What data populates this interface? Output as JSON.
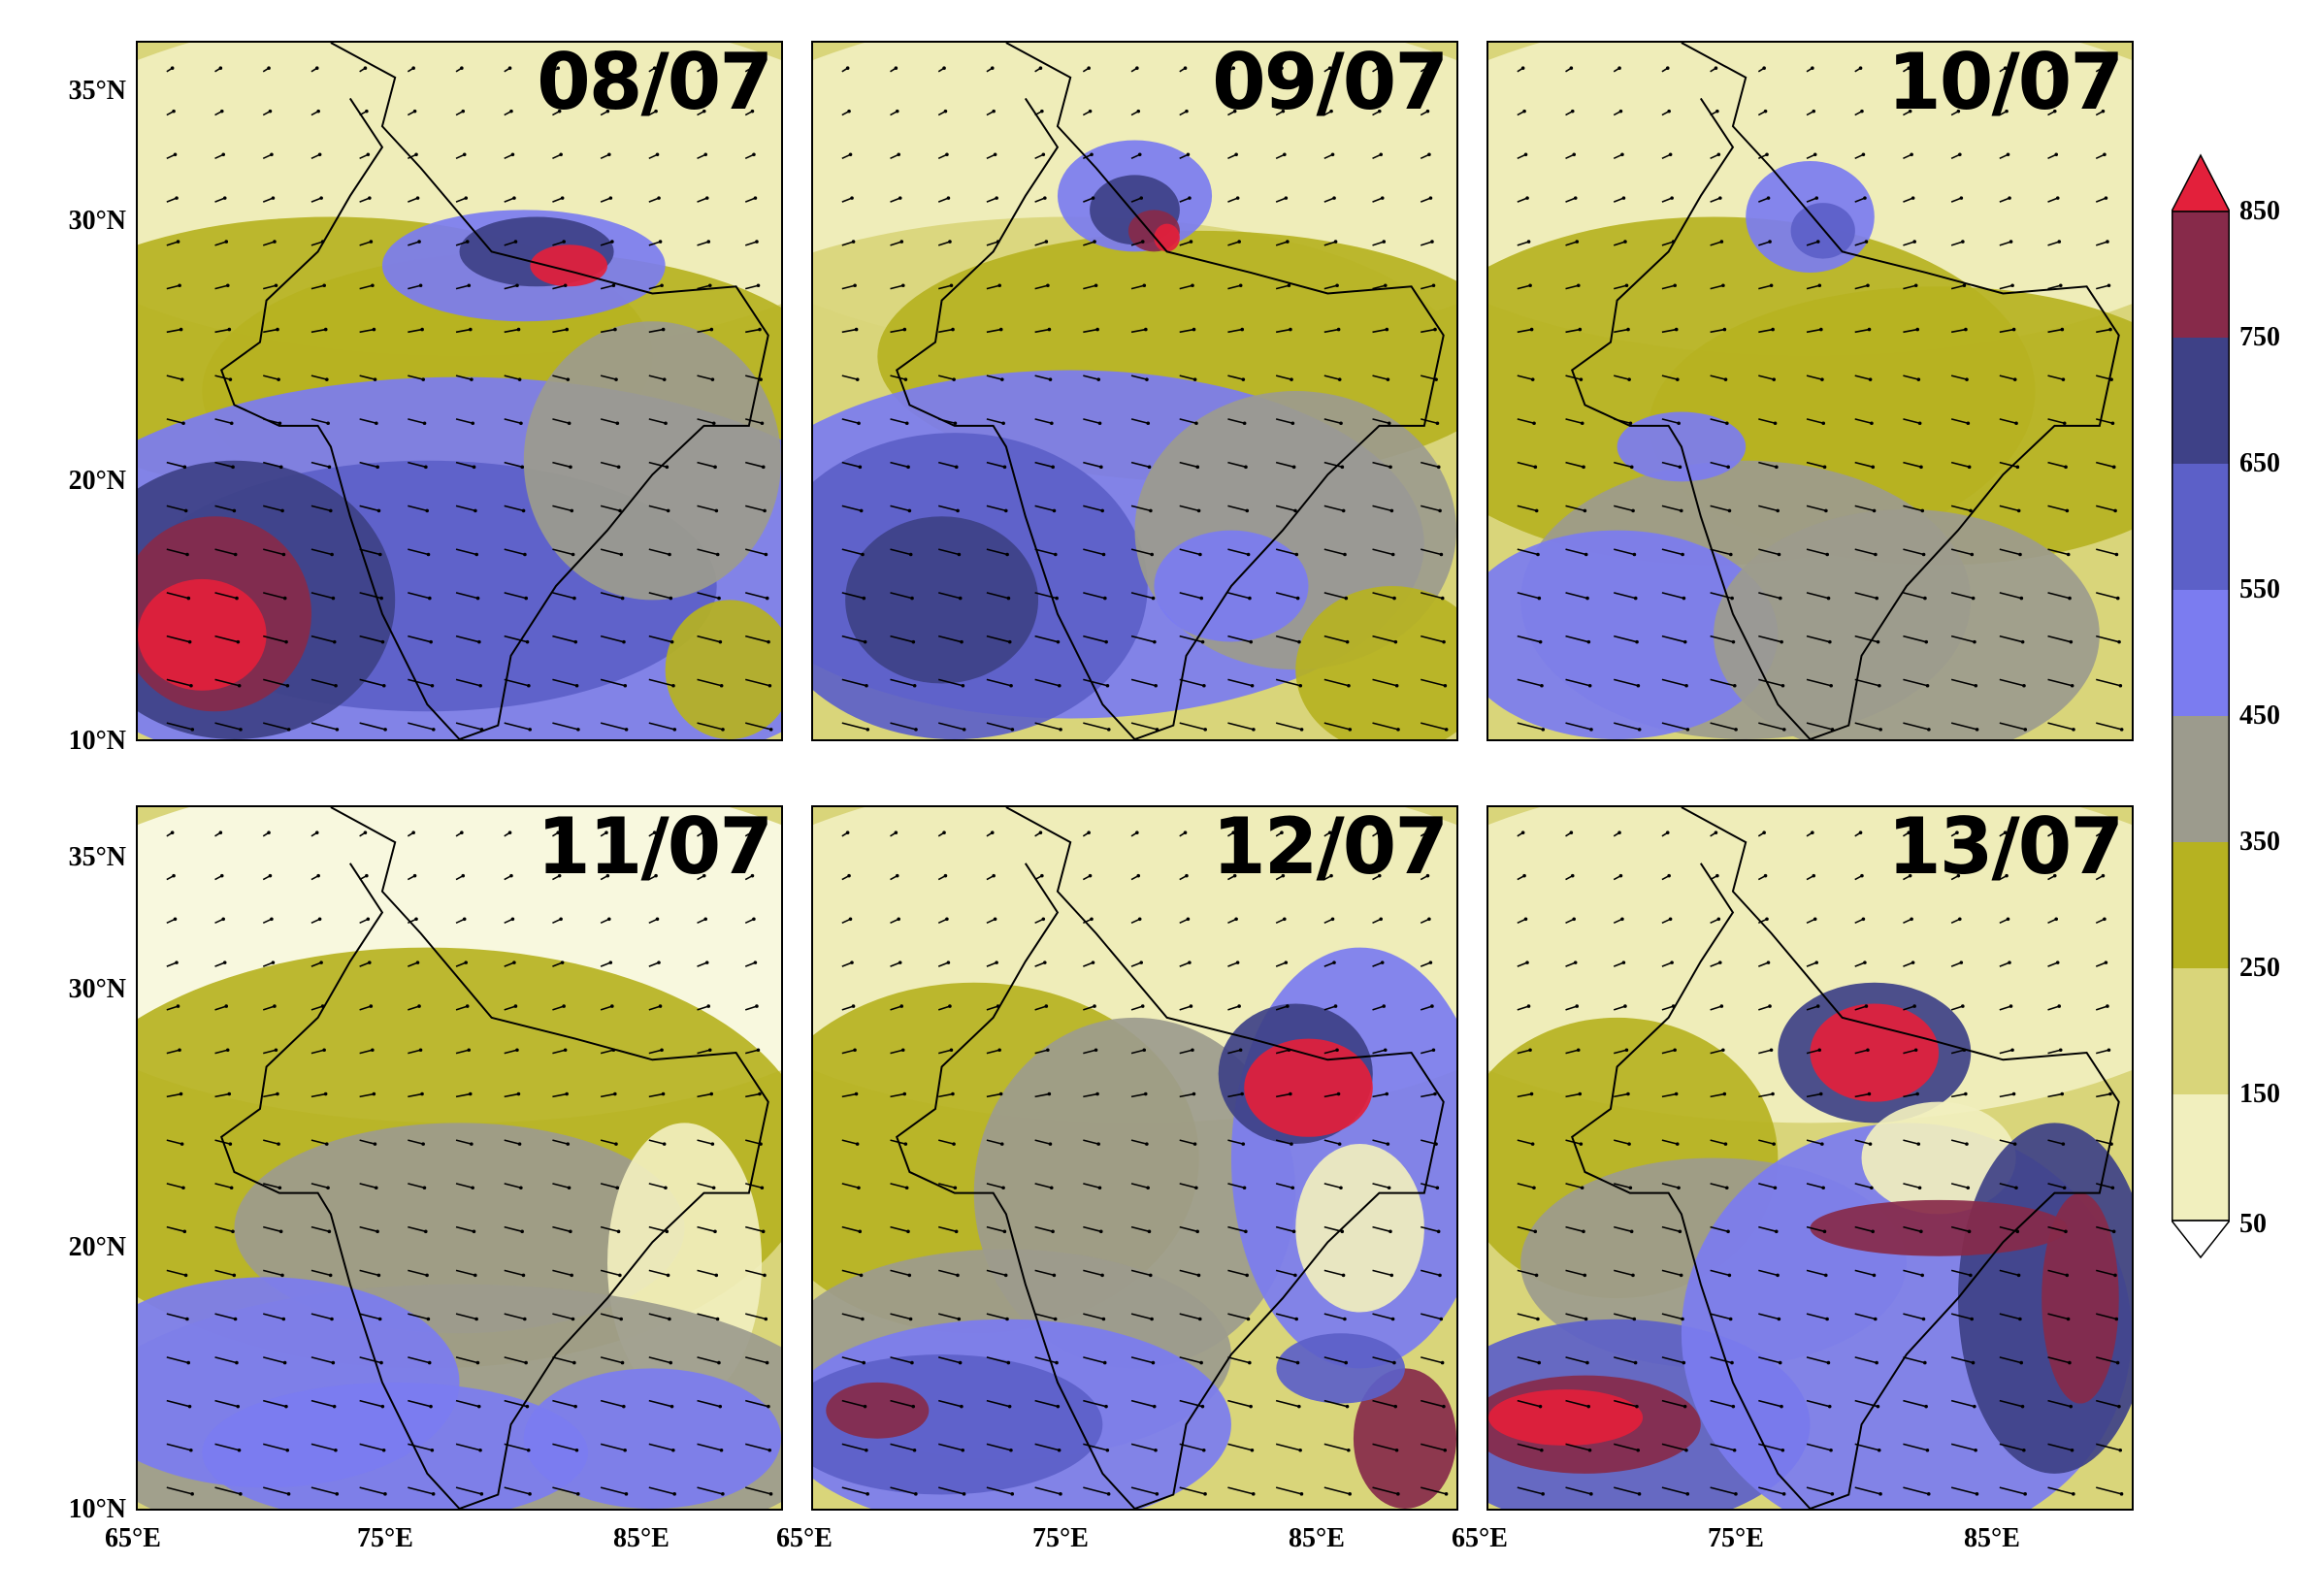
{
  "panels": [
    {
      "date": "08/07"
    },
    {
      "date": "09/07"
    },
    {
      "date": "10/07"
    },
    {
      "date": "11/07"
    },
    {
      "date": "12/07"
    },
    {
      "date": "13/07"
    }
  ],
  "axes": {
    "lat_labels": [
      "35°N",
      "30°N",
      "20°N",
      "10°N"
    ],
    "lon_labels": [
      "65°E",
      "75°E",
      "85°E"
    ]
  },
  "colorbar": {
    "labels": [
      "850",
      "750",
      "650",
      "550",
      "450",
      "350",
      "250",
      "150",
      "50"
    ],
    "colors": [
      "#fbfbe6",
      "#f1efbe",
      "#d9d57a",
      "#b6b221",
      "#9c9b8d",
      "#7b7cf0",
      "#5c60c8",
      "#3e4187",
      "#872a4a"
    ],
    "over_color": "#e3203b",
    "under_color": "#ffffff"
  }
}
